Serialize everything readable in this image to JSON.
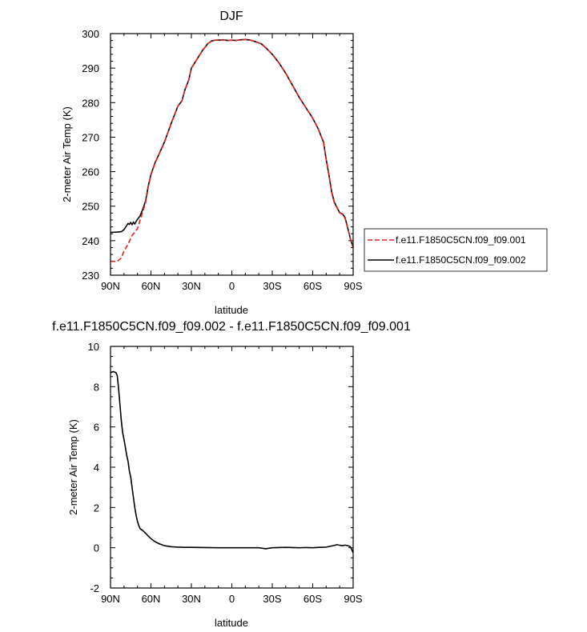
{
  "chart_data": [
    {
      "type": "line",
      "title": "DJF",
      "xlabel": "latitude",
      "ylabel": "2-meter Air Temp (K)",
      "xlim": [
        -90,
        90
      ],
      "ylim": [
        230,
        300
      ],
      "x_ticks": [
        -90,
        -60,
        -30,
        0,
        30,
        60,
        90
      ],
      "x_tick_labels": [
        "90N",
        "60N",
        "30N",
        "0",
        "30S",
        "60S",
        "90S"
      ],
      "y_ticks": [
        230,
        240,
        250,
        260,
        270,
        280,
        290,
        300
      ],
      "y_tick_labels": [
        "230",
        "240",
        "250",
        "260",
        "270",
        "280",
        "290",
        "300"
      ],
      "grid": false,
      "legend_position": "outside-right",
      "series": [
        {
          "name": "f.e11.F1850C5CN.f09_f09.001",
          "color": "#e0201b",
          "dash": "dashed",
          "x": [
            -90,
            -85,
            -82,
            -80,
            -77,
            -74,
            -72,
            -70,
            -68,
            -66,
            -64,
            -62,
            -60,
            -57,
            -54,
            -50,
            -45,
            -42,
            -40,
            -37,
            -35,
            -32,
            -30,
            -26,
            -22,
            -18,
            -15,
            -12,
            -10,
            -7,
            -5,
            -3,
            0,
            3,
            6,
            10,
            14,
            18,
            22,
            26,
            30,
            35,
            40,
            45,
            50,
            55,
            60,
            64,
            68,
            70,
            72,
            74,
            76,
            78,
            80,
            82,
            84,
            86,
            88,
            90
          ],
          "y": [
            234,
            234,
            235,
            237,
            239,
            241.5,
            242.5,
            243.5,
            246,
            248.5,
            251,
            255.5,
            259,
            262.5,
            265,
            268.5,
            274,
            277,
            279,
            280.5,
            283.5,
            286.5,
            290,
            292.5,
            295,
            297,
            297.9,
            298.1,
            298.1,
            298.2,
            298.1,
            298.0,
            298.1,
            298.0,
            298.2,
            298.3,
            298.1,
            297.6,
            297,
            295.6,
            294,
            291.5,
            288.5,
            285,
            281.5,
            278.5,
            275.5,
            272.5,
            268.5,
            263.5,
            259,
            254,
            251,
            249.5,
            248,
            247.7,
            246.5,
            243.5,
            240.5,
            238
          ]
        },
        {
          "name": "f.e11.F1850C5CN.f09_f09.002",
          "color": "#000000",
          "dash": "solid",
          "x": [
            -90,
            -85,
            -82,
            -80,
            -78,
            -77,
            -76,
            -75,
            -74,
            -73,
            -72,
            -71,
            -70,
            -68,
            -66,
            -64,
            -62,
            -60,
            -57,
            -54,
            -50,
            -45,
            -42,
            -40,
            -37,
            -35,
            -32,
            -30,
            -26,
            -22,
            -18,
            -15,
            -12,
            -10,
            -7,
            -5,
            -3,
            0,
            3,
            6,
            10,
            14,
            18,
            22,
            26,
            30,
            35,
            40,
            45,
            50,
            55,
            60,
            64,
            68,
            70,
            72,
            74,
            76,
            78,
            80,
            82,
            84,
            86,
            88,
            90
          ],
          "y": [
            242.4,
            242.5,
            242.6,
            243.2,
            244.4,
            245.0,
            244.7,
            245.3,
            244.6,
            245.4,
            244.8,
            245.6,
            246.2,
            247.2,
            249.2,
            251.5,
            255.8,
            259.2,
            262.6,
            265.1,
            268.6,
            274.0,
            277.0,
            279.0,
            280.5,
            283.5,
            286.5,
            290,
            292.5,
            295,
            297,
            297.9,
            298.1,
            298.1,
            298.2,
            298.1,
            298.0,
            298.1,
            298.0,
            298.2,
            298.3,
            298.1,
            297.6,
            297,
            295.6,
            294,
            291.5,
            288.5,
            285,
            281.5,
            278.5,
            275.5,
            272.5,
            268.5,
            263.6,
            259.1,
            254.2,
            251.2,
            249.6,
            248.1,
            247.8,
            246.7,
            243.6,
            240.5,
            238
          ]
        }
      ]
    },
    {
      "type": "line",
      "title": "f.e11.F1850C5CN.f09_f09.002 - f.e11.F1850C5CN.f09_f09.001",
      "xlabel": "latitude",
      "ylabel": "2-meter Air Temp (K)",
      "xlim": [
        -90,
        90
      ],
      "ylim": [
        -2,
        10
      ],
      "x_ticks": [
        -90,
        -60,
        -30,
        0,
        30,
        60,
        90
      ],
      "x_tick_labels": [
        "90N",
        "60N",
        "30N",
        "0",
        "30S",
        "60S",
        "90S"
      ],
      "y_ticks": [
        -2,
        0,
        2,
        4,
        6,
        8,
        10
      ],
      "y_tick_labels": [
        "-2",
        "0",
        "2",
        "4",
        "6",
        "8",
        "10"
      ],
      "grid": false,
      "series": [
        {
          "color": "#000000",
          "dash": "solid",
          "x": [
            -90,
            -88,
            -86,
            -85,
            -84,
            -83,
            -82,
            -81,
            -80,
            -79,
            -78,
            -77,
            -76,
            -75,
            -74,
            -73,
            -72,
            -71,
            -70,
            -69,
            -68,
            -66,
            -64,
            -62,
            -60,
            -58,
            -56,
            -54,
            -52,
            -50,
            -45,
            -40,
            -35,
            -30,
            -20,
            -10,
            0,
            10,
            20,
            25,
            30,
            40,
            50,
            55,
            60,
            65,
            70,
            75,
            78,
            80,
            82,
            84,
            86,
            88,
            89,
            90
          ],
          "y": [
            8.7,
            8.75,
            8.7,
            8.55,
            7.9,
            7.1,
            6.3,
            5.7,
            5.4,
            5.0,
            4.6,
            4.3,
            3.8,
            3.5,
            3.0,
            2.5,
            2.0,
            1.6,
            1.3,
            1.1,
            0.95,
            0.85,
            0.72,
            0.58,
            0.45,
            0.35,
            0.27,
            0.2,
            0.15,
            0.1,
            0.05,
            0.03,
            0.02,
            0.02,
            0.01,
            0.0,
            0.0,
            0.0,
            0.0,
            -0.05,
            0.0,
            0.02,
            0.0,
            0.01,
            0.0,
            0.02,
            0.03,
            0.1,
            0.15,
            0.12,
            0.1,
            0.13,
            0.1,
            0.05,
            -0.1,
            -0.25
          ]
        }
      ]
    }
  ]
}
